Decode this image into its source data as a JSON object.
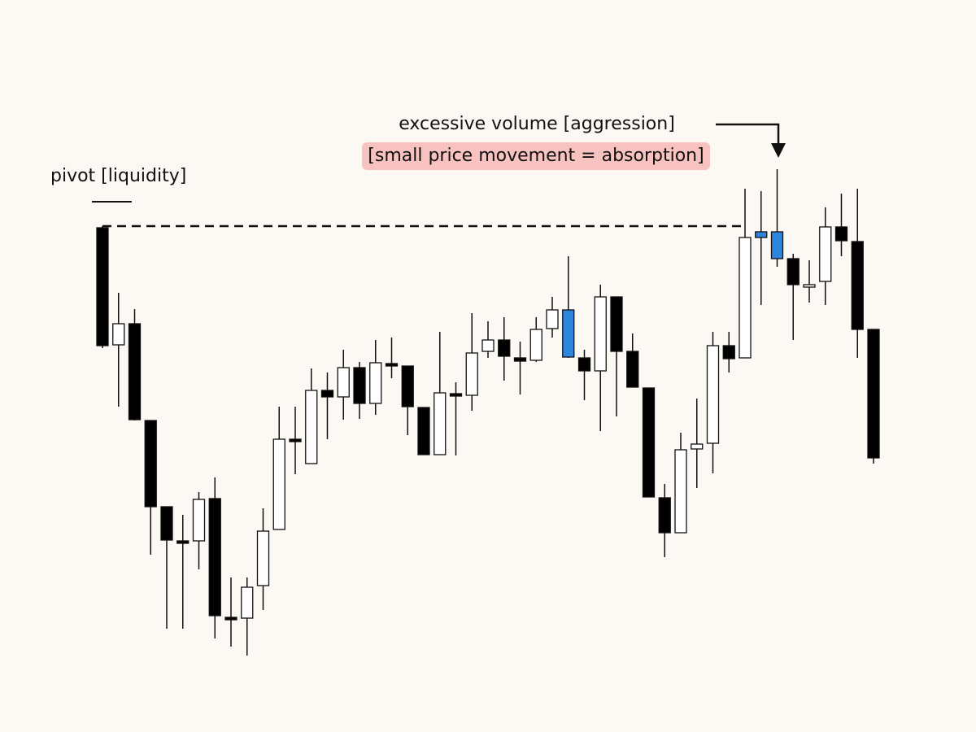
{
  "chart_data": {
    "type": "candlestick",
    "annotations": [
      "pivot [liquidity]",
      "excessive volume [aggression]",
      "[small price movement = absorption]"
    ],
    "ylim": [
      0,
      900
    ],
    "open": [
      620,
      476,
      502,
      383,
      277,
      235,
      235,
      287,
      141,
      140,
      180,
      249,
      360,
      330,
      420,
      412,
      448,
      404,
      453,
      450,
      399,
      341,
      416,
      414,
      468,
      482,
      460,
      457,
      496,
      519,
      460,
      444,
      535,
      468,
      423,
      288,
      245,
      348,
      355,
      475,
      460,
      615,
      615,
      582,
      550,
      554,
      621,
      603,
      495
    ],
    "high": [
      622,
      540,
      520,
      383,
      277,
      267,
      295,
      313,
      190,
      190,
      275,
      400,
      400,
      447,
      442,
      470,
      455,
      482,
      485,
      450,
      399,
      492,
      430,
      515,
      505,
      510,
      480,
      510,
      535,
      585,
      470,
      550,
      535,
      490,
      423,
      305,
      368,
      410,
      492,
      492,
      668,
      665,
      692,
      588,
      580,
      645,
      662,
      668,
      495
    ],
    "low": [
      472,
      400,
      383,
      218,
      127,
      127,
      200,
      115,
      105,
      94,
      150,
      249,
      317,
      330,
      360,
      384,
      385,
      390,
      435,
      365,
      341,
      341,
      340,
      395,
      460,
      432,
      415,
      455,
      485,
      460,
      408,
      370,
      388,
      424,
      289,
      215,
      245,
      300,
      318,
      442,
      460,
      525,
      572,
      482,
      528,
      525,
      585,
      460,
      330
    ],
    "close": [
      475,
      502,
      384,
      277,
      236,
      235,
      286,
      143,
      141,
      178,
      247,
      360,
      360,
      420,
      412,
      448,
      404,
      454,
      453,
      400,
      341,
      417,
      416,
      466,
      482,
      462,
      456,
      495,
      519,
      461,
      444,
      535,
      468,
      424,
      289,
      245,
      347,
      354,
      475,
      459,
      608,
      608,
      582,
      550,
      550,
      621,
      604,
      495,
      337
    ],
    "colors": [
      "#000000",
      "#ffffff",
      "#000000",
      "#000000",
      "#000000",
      "#000000",
      "#ffffff",
      "#000000",
      "#000000",
      "#ffffff",
      "#ffffff",
      "#ffffff",
      "#000000",
      "#ffffff",
      "#000000",
      "#ffffff",
      "#000000",
      "#ffffff",
      "#000000",
      "#000000",
      "#000000",
      "#ffffff",
      "#000000",
      "#ffffff",
      "#ffffff",
      "#000000",
      "#000000",
      "#ffffff",
      "#ffffff",
      "#2b86dc",
      "#000000",
      "#ffffff",
      "#000000",
      "#000000",
      "#000000",
      "#000000",
      "#ffffff",
      "#ffffff",
      "#ffffff",
      "#000000",
      "#ffffff",
      "#2b86dc",
      "#2b86dc",
      "#000000",
      "#ffffff",
      "#ffffff",
      "#000000",
      "#000000",
      "#000000"
    ]
  }
}
